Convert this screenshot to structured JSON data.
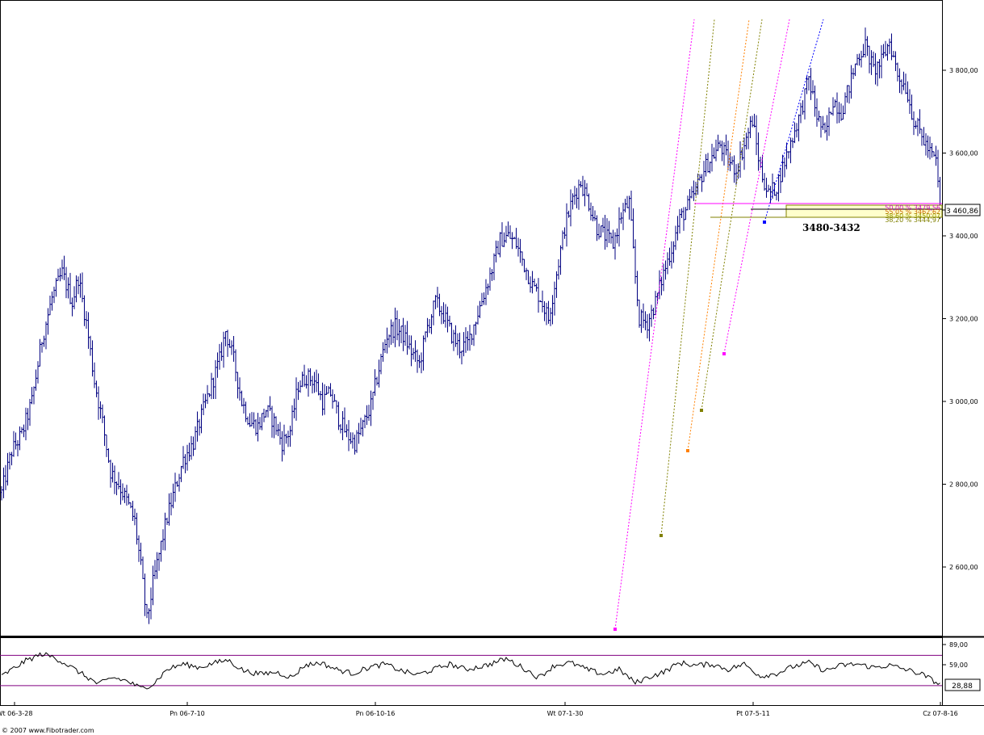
{
  "chart_data": [
    {
      "type": "ohlc",
      "y_ticks": [
        "3 800,00",
        "3 600,00",
        "3 400,00",
        "3 200,00",
        "3 000,00",
        "2 800,00",
        "2 600,00"
      ],
      "y_tick_values": [
        3800,
        3600,
        3400,
        3200,
        3000,
        2800,
        2600
      ],
      "ylim": [
        2460,
        3930
      ],
      "x_ticks": [
        "Wt 06-3-28",
        "Pn 06-7-10",
        "Pn 06-10-16",
        "Wt 07-1-30",
        "Pt 07-5-11",
        "Cz 07-8-16"
      ],
      "last_price": 3460.86,
      "last_price_label": "3 460,86",
      "anchors": [
        [
          0,
          2780
        ],
        [
          5,
          2880
        ],
        [
          10,
          2920
        ],
        [
          15,
          3000
        ],
        [
          20,
          3150
        ],
        [
          25,
          3250
        ],
        [
          30,
          3310
        ],
        [
          35,
          3240
        ],
        [
          38,
          3300
        ],
        [
          42,
          3190
        ],
        [
          46,
          3050
        ],
        [
          50,
          2950
        ],
        [
          54,
          2830
        ],
        [
          58,
          2800
        ],
        [
          62,
          2760
        ],
        [
          66,
          2710
        ],
        [
          69,
          2600
        ],
        [
          72,
          2470
        ],
        [
          75,
          2560
        ],
        [
          78,
          2630
        ],
        [
          82,
          2720
        ],
        [
          86,
          2790
        ],
        [
          90,
          2860
        ],
        [
          95,
          2900
        ],
        [
          100,
          2980
        ],
        [
          104,
          3040
        ],
        [
          108,
          3100
        ],
        [
          111,
          3170
        ],
        [
          115,
          3100
        ],
        [
          119,
          3000
        ],
        [
          123,
          2950
        ],
        [
          127,
          2940
        ],
        [
          131,
          2980
        ],
        [
          135,
          2950
        ],
        [
          139,
          2900
        ],
        [
          143,
          2930
        ],
        [
          147,
          3040
        ],
        [
          151,
          3060
        ],
        [
          155,
          3050
        ],
        [
          159,
          3000
        ],
        [
          163,
          3020
        ],
        [
          167,
          2960
        ],
        [
          171,
          2920
        ],
        [
          175,
          2900
        ],
        [
          179,
          2940
        ],
        [
          183,
          2990
        ],
        [
          187,
          3080
        ],
        [
          191,
          3160
        ],
        [
          195,
          3180
        ],
        [
          199,
          3160
        ],
        [
          203,
          3120
        ],
        [
          207,
          3090
        ],
        [
          211,
          3180
        ],
        [
          215,
          3240
        ],
        [
          219,
          3210
        ],
        [
          223,
          3160
        ],
        [
          227,
          3130
        ],
        [
          231,
          3140
        ],
        [
          235,
          3200
        ],
        [
          239,
          3260
        ],
        [
          243,
          3320
        ],
        [
          247,
          3390
        ],
        [
          251,
          3400
        ],
        [
          255,
          3380
        ],
        [
          259,
          3330
        ],
        [
          263,
          3280
        ],
        [
          267,
          3250
        ],
        [
          271,
          3200
        ],
        [
          275,
          3310
        ],
        [
          279,
          3420
        ],
        [
          283,
          3490
        ],
        [
          287,
          3530
        ],
        [
          291,
          3480
        ],
        [
          295,
          3420
        ],
        [
          299,
          3400
        ],
        [
          303,
          3380
        ],
        [
          307,
          3450
        ],
        [
          311,
          3480
        ],
        [
          314,
          3300
        ],
        [
          316,
          3200
        ],
        [
          320,
          3190
        ],
        [
          324,
          3240
        ],
        [
          328,
          3310
        ],
        [
          332,
          3370
        ],
        [
          336,
          3440
        ],
        [
          340,
          3470
        ],
        [
          344,
          3510
        ],
        [
          348,
          3560
        ],
        [
          352,
          3590
        ],
        [
          356,
          3620
        ],
        [
          360,
          3580
        ],
        [
          364,
          3560
        ],
        [
          368,
          3620
        ],
        [
          372,
          3680
        ],
        [
          376,
          3560
        ],
        [
          380,
          3500
        ],
        [
          384,
          3520
        ],
        [
          388,
          3580
        ],
        [
          392,
          3640
        ],
        [
          396,
          3700
        ],
        [
          400,
          3780
        ],
        [
          404,
          3690
        ],
        [
          408,
          3640
        ],
        [
          412,
          3730
        ],
        [
          416,
          3700
        ],
        [
          420,
          3760
        ],
        [
          424,
          3830
        ],
        [
          428,
          3860
        ],
        [
          432,
          3800
        ],
        [
          436,
          3820
        ],
        [
          440,
          3870
        ],
        [
          444,
          3790
        ],
        [
          448,
          3760
        ],
        [
          452,
          3680
        ],
        [
          456,
          3640
        ],
        [
          460,
          3600
        ],
        [
          463,
          3580
        ],
        [
          465,
          3470
        ]
      ],
      "rsi": {
        "levels": [
          "89,00",
          "59,00"
        ],
        "level_values": [
          89,
          59
        ],
        "band_upper": 73,
        "band_lower": 28,
        "current": 28.88,
        "current_label": "28,88",
        "anchors": [
          [
            0,
            42
          ],
          [
            12,
            65
          ],
          [
            20,
            75
          ],
          [
            26,
            70
          ],
          [
            32,
            60
          ],
          [
            40,
            45
          ],
          [
            48,
            30
          ],
          [
            55,
            40
          ],
          [
            62,
            35
          ],
          [
            69,
            24
          ],
          [
            75,
            30
          ],
          [
            82,
            52
          ],
          [
            90,
            60
          ],
          [
            98,
            55
          ],
          [
            106,
            62
          ],
          [
            112,
            66
          ],
          [
            120,
            50
          ],
          [
            128,
            45
          ],
          [
            136,
            48
          ],
          [
            144,
            40
          ],
          [
            150,
            58
          ],
          [
            158,
            62
          ],
          [
            166,
            52
          ],
          [
            174,
            46
          ],
          [
            182,
            55
          ],
          [
            190,
            60
          ],
          [
            198,
            50
          ],
          [
            206,
            44
          ],
          [
            214,
            52
          ],
          [
            222,
            60
          ],
          [
            230,
            52
          ],
          [
            240,
            58
          ],
          [
            250,
            68
          ],
          [
            258,
            55
          ],
          [
            266,
            40
          ],
          [
            274,
            58
          ],
          [
            282,
            62
          ],
          [
            290,
            52
          ],
          [
            298,
            45
          ],
          [
            306,
            52
          ],
          [
            314,
            32
          ],
          [
            320,
            40
          ],
          [
            328,
            48
          ],
          [
            336,
            62
          ],
          [
            344,
            58
          ],
          [
            352,
            60
          ],
          [
            360,
            52
          ],
          [
            368,
            60
          ],
          [
            376,
            42
          ],
          [
            384,
            46
          ],
          [
            392,
            56
          ],
          [
            400,
            62
          ],
          [
            408,
            50
          ],
          [
            416,
            58
          ],
          [
            424,
            60
          ],
          [
            432,
            55
          ],
          [
            440,
            58
          ],
          [
            448,
            52
          ],
          [
            456,
            45
          ],
          [
            462,
            35
          ],
          [
            465,
            28.88
          ]
        ]
      }
    }
  ],
  "fib_lines": [
    {
      "label": "50,00 % 3479,56",
      "color": "#cc00cc",
      "value": 3479.56
    },
    {
      "label": "55,05 % 3462,62",
      "color": "#cc6600",
      "value": 3462.62
    },
    {
      "label": "38,60 % 3450,07",
      "color": "#999900",
      "value": 3450.07
    },
    {
      "label": "38,20 % 3444,97",
      "color": "#808000",
      "value": 3444.97
    }
  ],
  "annotation": "3480-3432",
  "copyright": "© 2007 www.Fibotrader.com",
  "colors": {
    "bars": "#000080",
    "magenta": "#ff00ff",
    "orange": "#ff8000",
    "olive": "#808000",
    "blue_dash": "#0000ff",
    "rsi_band": "#800080"
  }
}
